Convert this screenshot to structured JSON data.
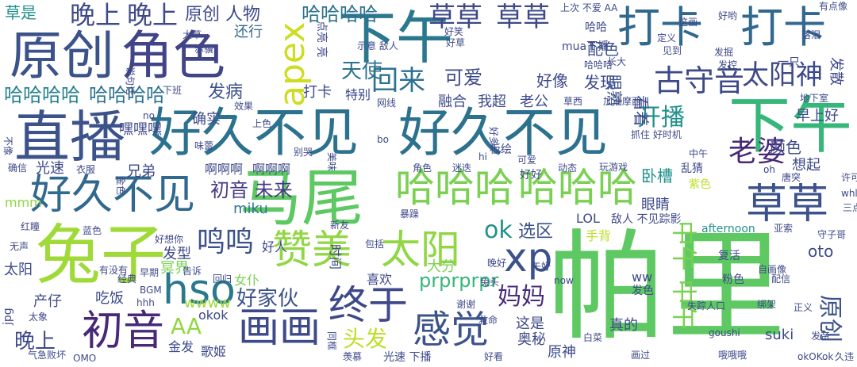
{
  "wordcloud": {
    "background": "#ffffff",
    "palette": [
      "#440154",
      "#482475",
      "#414487",
      "#355f8d",
      "#2a788e",
      "#21918c",
      "#22a884",
      "#44bf70",
      "#7ad151",
      "#bddf26",
      "#fde725"
    ],
    "words": [
      {
        "text": "帕里",
        "color": "#5ec962"
      },
      {
        "text": "下午",
        "color": "#2a788e"
      },
      {
        "text": "下午",
        "color": "#35b779"
      },
      {
        "text": "原创",
        "color": "#3b528b"
      },
      {
        "text": "角色",
        "color": "#414487"
      },
      {
        "text": "直播",
        "color": "#3b528b"
      },
      {
        "text": "好久不见",
        "color": "#2c728e"
      },
      {
        "text": "好久不见",
        "color": "#2c728e"
      },
      {
        "text": "好久不见",
        "color": "#31688e"
      },
      {
        "text": "兔子",
        "color": "#a0da39"
      },
      {
        "text": "马尾",
        "color": "#5ec962"
      },
      {
        "text": "哈哈哈",
        "color": "#7ad151"
      },
      {
        "text": "哈哈哈",
        "color": "#7ad151"
      },
      {
        "text": "赞美",
        "color": "#90d743"
      },
      {
        "text": "太阳",
        "color": "#90d743"
      },
      {
        "text": "草草",
        "color": "#3b528b"
      },
      {
        "text": "打卡",
        "color": "#31688e"
      },
      {
        "text": "打卡",
        "color": "#31688e"
      },
      {
        "text": "apex",
        "color": "#cddd22"
      },
      {
        "text": "hso",
        "color": "#2a788e"
      },
      {
        "text": "初音",
        "color": "#482878"
      },
      {
        "text": "画画",
        "color": "#3e4989"
      },
      {
        "text": "终于",
        "color": "#3e4989"
      },
      {
        "text": "感觉",
        "color": "#3b528b"
      },
      {
        "text": "xp",
        "color": "#3b528b"
      },
      {
        "text": "中午",
        "color": "#7ad151"
      },
      {
        "text": "中午",
        "color": "#7ad151"
      },
      {
        "text": "原创",
        "color": "#3b528b"
      },
      {
        "text": "古守音",
        "color": "#3e4989"
      },
      {
        "text": "草草",
        "color": "#3e4989"
      },
      {
        "text": "草草",
        "color": "#3e4989"
      },
      {
        "text": "晚上",
        "color": "#3e4989"
      },
      {
        "text": "晚上",
        "color": "#3e4989"
      },
      {
        "text": "哈哈哈哈",
        "color": "#2c728e"
      },
      {
        "text": "哈哈哈哈",
        "color": "#26828e"
      },
      {
        "text": "哈哈哈哈",
        "color": "#2c728e"
      },
      {
        "text": "回来",
        "color": "#2c728e"
      },
      {
        "text": "天使",
        "color": "#2c728e"
      },
      {
        "text": "太阳神",
        "color": "#3e4989"
      },
      {
        "text": "老婆",
        "color": "#482878"
      },
      {
        "text": "开播",
        "color": "#21918c"
      },
      {
        "text": "可爱",
        "color": "#3e4989"
      },
      {
        "text": "鸣鸣",
        "color": "#3b528b"
      },
      {
        "text": "头发",
        "color": "#bddf26"
      },
      {
        "text": "妈妈",
        "color": "#472c7a"
      },
      {
        "text": "AA",
        "color": "#90d743"
      },
      {
        "text": "ok",
        "color": "#21918c"
      },
      {
        "text": "选区",
        "color": "#3b528b"
      },
      {
        "text": "晚上",
        "color": "#3e4989"
      },
      {
        "text": "好家伙",
        "color": "#3b528b"
      },
      {
        "text": "发病",
        "color": "#3b528b"
      },
      {
        "text": "初音 未来",
        "color": "#443983"
      },
      {
        "text": "prprprpr",
        "color": "#35b779"
      },
      {
        "text": "miku",
        "color": "#2a788e"
      },
      {
        "text": "草是",
        "color": "#21918c"
      },
      {
        "text": "原创 人物",
        "color": "#3e4989"
      },
      {
        "text": "还行",
        "color": "#31688e"
      },
      {
        "text": "发现",
        "color": "#3e4989"
      },
      {
        "text": "好像",
        "color": "#3e4989"
      },
      {
        "text": "配色",
        "color": "#3b528b"
      },
      {
        "text": "眼熟",
        "color": "#3b528b"
      },
      {
        "text": "卧槽",
        "color": "#21918c"
      },
      {
        "text": "颜色",
        "color": "#3e4989"
      },
      {
        "text": "早上好",
        "color": "#3e4989"
      },
      {
        "text": "融合",
        "color": "#3e4989"
      },
      {
        "text": "我超",
        "color": "#3e4989"
      },
      {
        "text": "老公",
        "color": "#3e4989"
      },
      {
        "text": "确实",
        "color": "#3e4989"
      },
      {
        "text": "嘿嘿嘿",
        "color": "#3e4989"
      },
      {
        "text": "光速",
        "color": "#3e4989"
      },
      {
        "text": "兄弟",
        "color": "#3e4989"
      },
      {
        "text": "啊啊啊",
        "color": "#3e4989"
      },
      {
        "text": "啊啊啊",
        "color": "#3e4989"
      },
      {
        "text": "想起",
        "color": "#3e4989"
      },
      {
        "text": "眼睛",
        "color": "#3e4989"
      },
      {
        "text": "大分",
        "color": "#7ad151"
      },
      {
        "text": "喜欢",
        "color": "#3e4989"
      },
      {
        "text": "LOL",
        "color": "#3e4989"
      },
      {
        "text": "敌人 不见踪影",
        "color": "#3e4989"
      },
      {
        "text": "手背",
        "color": "#bddf26"
      },
      {
        "text": "oto",
        "color": "#3e4989"
      },
      {
        "text": "发型",
        "color": "#3e4989"
      },
      {
        "text": "冥界",
        "color": "#7ad151"
      },
      {
        "text": "好人",
        "color": "#3e4989"
      },
      {
        "text": "mmm",
        "color": "#90d743"
      },
      {
        "text": "wwww",
        "color": "#a0da39"
      },
      {
        "text": "太阳",
        "color": "#3e4989"
      },
      {
        "text": "女仆",
        "color": "#7ad151"
      },
      {
        "text": "产仔",
        "color": "#3e4989"
      },
      {
        "text": "吃饭",
        "color": "#3e4989"
      },
      {
        "text": "okok",
        "color": "#3e4989"
      },
      {
        "text": "这是",
        "color": "#3e4989"
      },
      {
        "text": "奥秘",
        "color": "#3e4989"
      },
      {
        "text": "真的",
        "color": "#3e4989"
      },
      {
        "text": "suki",
        "color": "#3e4989"
      },
      {
        "text": "原神",
        "color": "#3e4989"
      },
      {
        "text": "歌姬",
        "color": "#3e4989"
      },
      {
        "text": "金发",
        "color": "#3e4989"
      },
      {
        "text": "ww",
        "color": "#3e4989"
      },
      {
        "text": "粉色",
        "color": "#3e4989"
      },
      {
        "text": "配信",
        "color": "#3e4989"
      },
      {
        "text": "复活",
        "color": "#3e4989"
      },
      {
        "text": "失踪人口",
        "color": "#3e4989"
      },
      {
        "text": "正义",
        "color": "#3e4989"
      },
      {
        "text": "绑架",
        "color": "#3e4989"
      },
      {
        "text": "afternoon",
        "color": "#21918c"
      },
      {
        "text": "亚索",
        "color": "#3e4989"
      },
      {
        "text": "守子哥",
        "color": "#3e4989"
      },
      {
        "text": "okOKok",
        "color": "#3e4989"
      },
      {
        "text": "久违",
        "color": "#3e4989"
      },
      {
        "text": "白菜",
        "color": "#3e4989"
      },
      {
        "text": "画过",
        "color": "#3e4989"
      },
      {
        "text": "哦哦哦",
        "color": "#3e4989"
      },
      {
        "text": "光速 下播",
        "color": "#3e4989"
      },
      {
        "text": "气急败坏",
        "color": "#3e4989"
      },
      {
        "text": "jpg",
        "color": "#3e4989"
      },
      {
        "text": "无声",
        "color": "#3e4989"
      },
      {
        "text": "红瞳",
        "color": "#3e4989"
      },
      {
        "text": "蓝色",
        "color": "#3e4989"
      },
      {
        "text": "早期",
        "color": "#3e4989"
      },
      {
        "text": "好想你",
        "color": "#3e4989"
      },
      {
        "text": "地下室",
        "color": "#3e4989"
      },
      {
        "text": "加油摩西",
        "color": "#3e4989"
      },
      {
        "text": "上次 不爱 AA",
        "color": "#3e4989"
      },
      {
        "text": "mua下播",
        "color": "#3e4989"
      },
      {
        "text": "哈哈哈",
        "color": "#3e4989"
      },
      {
        "text": "一只",
        "color": "#3e4989"
      },
      {
        "text": "长大",
        "color": "#3e4989"
      },
      {
        "text": "定义",
        "color": "#3e4989"
      },
      {
        "text": "发掘",
        "color": "#3e4989"
      },
      {
        "text": "落泪",
        "color": "#3e4989"
      },
      {
        "text": "有点像",
        "color": "#3e4989"
      },
      {
        "text": "发散",
        "color": "#3e4989"
      },
      {
        "text": "玩游戏",
        "color": "#3e4989"
      },
      {
        "text": "唐突",
        "color": "#3e4989"
      },
      {
        "text": "乱猜",
        "color": "#3e4989"
      },
      {
        "text": "紫色",
        "color": "#bddf26"
      },
      {
        "text": "许可",
        "color": "#3e4989"
      },
      {
        "text": "三点",
        "color": "#3e4989"
      },
      {
        "text": "whl",
        "color": "#3e4989"
      },
      {
        "text": "oh",
        "color": "#3e4989"
      },
      {
        "text": "动态",
        "color": "#3e4989"
      },
      {
        "text": "可爱",
        "color": "#3e4989"
      },
      {
        "text": "角色",
        "color": "#3e4989"
      },
      {
        "text": "迷迭",
        "color": "#3e4989"
      },
      {
        "text": "hi",
        "color": "#3e4989"
      },
      {
        "text": "好好",
        "color": "#3e4989"
      },
      {
        "text": "暴躁",
        "color": "#3e4989"
      },
      {
        "text": "包括",
        "color": "#3e4989"
      },
      {
        "text": "晚好",
        "color": "#3e4989"
      },
      {
        "text": "午好",
        "color": "#3e4989"
      },
      {
        "text": "时间",
        "color": "#3e4989"
      },
      {
        "text": "新友",
        "color": "#3e4989"
      },
      {
        "text": "羡慕",
        "color": "#3e4989"
      },
      {
        "text": "同框",
        "color": "#3e4989"
      },
      {
        "text": "救命",
        "color": "#3e4989"
      },
      {
        "text": "谢谢",
        "color": "#3e4989"
      },
      {
        "text": "兔头",
        "color": "#3e4989"
      },
      {
        "text": "发色",
        "color": "#3e4989"
      },
      {
        "text": "好看",
        "color": "#3e4989"
      },
      {
        "text": "OMO",
        "color": "#3e4989"
      },
      {
        "text": "有没有",
        "color": "#3e4989"
      },
      {
        "text": "hhh",
        "color": "#3e4989"
      },
      {
        "text": "BGM",
        "color": "#3e4989"
      },
      {
        "text": "经典",
        "color": "#3e4989"
      },
      {
        "text": "告诉",
        "color": "#3e4989"
      },
      {
        "text": "太象",
        "color": "#3e4989"
      },
      {
        "text": "goushi",
        "color": "#3e4989"
      },
      {
        "text": "发帝",
        "color": "#3e4989"
      },
      {
        "text": "自画像",
        "color": "#3e4989"
      },
      {
        "text": "回归",
        "color": "#3e4989"
      },
      {
        "text": "美味",
        "color": "#3e4989"
      },
      {
        "text": "金色",
        "color": "#3e4989"
      },
      {
        "text": "衣服",
        "color": "#3e4989"
      },
      {
        "text": "确信",
        "color": "#3e4989"
      },
      {
        "text": "不像",
        "color": "#3e4989"
      },
      {
        "text": "味蕾",
        "color": "#3e4989"
      },
      {
        "text": "别哭",
        "color": "#3e4989"
      },
      {
        "text": "bo",
        "color": "#3e4989"
      },
      {
        "text": "抓住 好时机",
        "color": "#3e4989"
      },
      {
        "text": "中午",
        "color": "#3e4989"
      },
      {
        "text": "板绘",
        "color": "#3e4989"
      },
      {
        "text": "好多",
        "color": "#3e4989"
      },
      {
        "text": "草西",
        "color": "#3e4989"
      },
      {
        "text": "网线",
        "color": "#3e4989"
      },
      {
        "text": "上色",
        "color": "#3e4989"
      },
      {
        "text": "效果",
        "color": "#3e4989"
      },
      {
        "text": "下班",
        "color": "#3e4989"
      },
      {
        "text": "看着",
        "color": "#3e4989"
      },
      {
        "text": "特别",
        "color": "#3e4989"
      },
      {
        "text": "打卡",
        "color": "#3e4989"
      },
      {
        "text": "示意 敌人",
        "color": "#3e4989"
      },
      {
        "text": "点亮 亮",
        "color": "#3e4989"
      },
      {
        "text": "哈哈",
        "color": "#3e4989"
      },
      {
        "text": "好笑",
        "color": "#3e4989"
      },
      {
        "text": "见到",
        "color": "#3e4989"
      },
      {
        "text": "发控",
        "color": "#3e4989"
      },
      {
        "text": "这画",
        "color": "#3e4989"
      },
      {
        "text": "好哟",
        "color": "#3e4989"
      },
      {
        "text": "赤骥",
        "color": "#3e4989"
      },
      {
        "text": "大草",
        "color": "#3e4989"
      },
      {
        "text": "no",
        "color": "#3e4989"
      },
      {
        "text": "now",
        "color": "#3e4989"
      },
      {
        "text": "好草",
        "color": "#3e4989"
      },
      {
        "text": "说句话",
        "color": "#3e4989"
      }
    ]
  }
}
